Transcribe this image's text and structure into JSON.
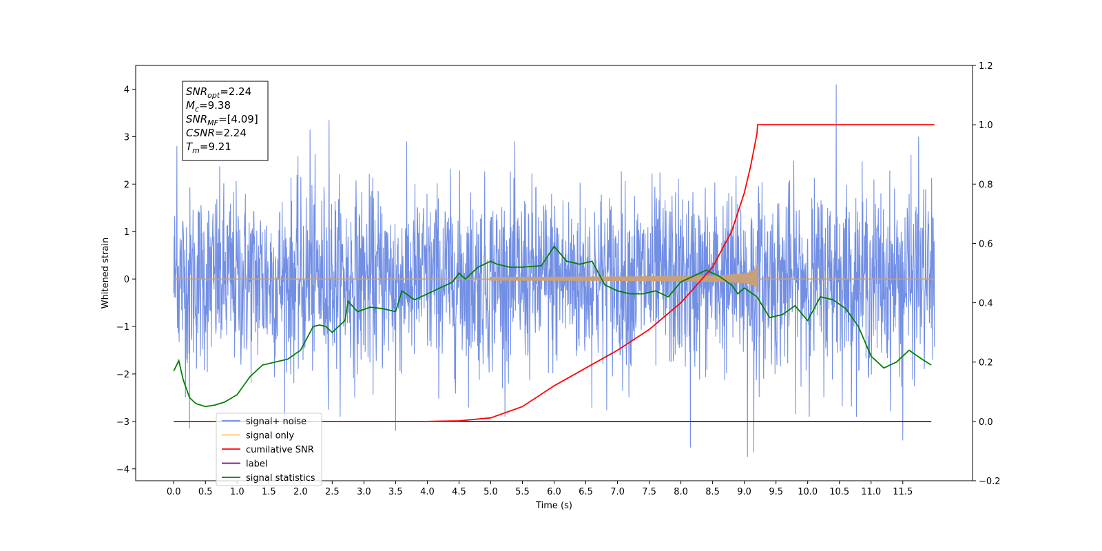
{
  "chart_data": {
    "type": "line",
    "xlabel": "Time (s)",
    "ylabel": "Whitened strain",
    "xlim": [
      -0.6,
      12.6
    ],
    "ylim": [
      -4.25,
      4.5
    ],
    "y2lim": [
      -0.2,
      1.2
    ],
    "x_ticks": [
      0.0,
      0.5,
      1.0,
      1.5,
      2.0,
      2.5,
      3.0,
      3.5,
      4.0,
      4.5,
      5.0,
      5.5,
      6.0,
      6.5,
      7.0,
      7.5,
      8.0,
      8.5,
      9.0,
      9.5,
      10.0,
      10.5,
      11.0,
      11.5
    ],
    "x_tick_labels": [
      "0.0",
      "0.5",
      "1.0",
      "1.5",
      "2.0",
      "2.5",
      "3.0",
      "3.5",
      "4.0",
      "4.5",
      "5.0",
      "5.5",
      "6.0",
      "6.5",
      "7.0",
      "7.5",
      "8.0",
      "8.5",
      "9.0",
      "9.5",
      "10.0",
      "10.5",
      "11.0",
      "11.5"
    ],
    "y_ticks": [
      -4,
      -3,
      -2,
      -1,
      0,
      1,
      2,
      3,
      4
    ],
    "y_tick_labels": [
      "−4",
      "−3",
      "−2",
      "−1",
      "0",
      "1",
      "2",
      "3",
      "4"
    ],
    "y2_ticks": [
      -0.2,
      0.0,
      0.2,
      0.4,
      0.6,
      0.8,
      1.0,
      1.2
    ],
    "y2_tick_labels": [
      "−0.2",
      "0.0",
      "0.2",
      "0.4",
      "0.6",
      "0.8",
      "1.0",
      "1.2"
    ],
    "grid": false,
    "legend_position": "lower-left",
    "annotation_lines": [
      {
        "name": "SNR",
        "sub": "opt",
        "value": "=2.24"
      },
      {
        "name": "M",
        "sub": "c",
        "value": "=9.38"
      },
      {
        "name": "SNR",
        "sub": "MF",
        "value": "=[4.09]"
      },
      {
        "name": "CSNR",
        "sub": "",
        "value": "=2.24"
      },
      {
        "name": "T",
        "sub": "m",
        "value": "=9.21"
      }
    ],
    "series": [
      {
        "name": "signal+ noise",
        "color": "#6a89e3",
        "axis": "left",
        "x_range": [
          0.0,
          12.0
        ],
        "typical_range": [
          -2.0,
          2.0
        ],
        "peak_values": [
          {
            "x": 0.05,
            "y": 2.8
          },
          {
            "x": 0.25,
            "y": -3.15
          },
          {
            "x": 2.15,
            "y": 3.15
          },
          {
            "x": 2.45,
            "y": 3.35
          },
          {
            "x": 3.5,
            "y": -3.2
          },
          {
            "x": 8.15,
            "y": -3.55
          },
          {
            "x": 9.05,
            "y": -3.75
          },
          {
            "x": 9.15,
            "y": -3.65
          },
          {
            "x": 10.45,
            "y": 4.1
          },
          {
            "x": 11.5,
            "y": -3.4
          },
          {
            "x": 11.75,
            "y": 3.0
          }
        ]
      },
      {
        "name": "signal only",
        "color": "#c8a07a",
        "axis": "left",
        "chirp_start": 5.0,
        "merger_time": 9.21,
        "merger_amplitude": 0.32
      },
      {
        "name": "cumilative SNR",
        "color": "#ff0000",
        "axis": "right",
        "x": [
          0.0,
          4.0,
          4.5,
          5.0,
          5.5,
          6.0,
          6.5,
          7.0,
          7.5,
          8.0,
          8.5,
          8.8,
          9.0,
          9.1,
          9.2,
          9.21,
          12.0
        ],
        "values": [
          0.0,
          0.0,
          0.002,
          0.012,
          0.05,
          0.12,
          0.18,
          0.24,
          0.31,
          0.4,
          0.52,
          0.64,
          0.77,
          0.86,
          0.97,
          1.0,
          1.0
        ]
      },
      {
        "name": "label",
        "color": "#6a0f6a",
        "axis": "right",
        "x": [
          0.0,
          11.95
        ],
        "values": [
          0.0,
          0.0
        ]
      },
      {
        "name": "signal statistics",
        "color": "#008000",
        "axis": "right",
        "x": [
          0.0,
          0.08,
          0.15,
          0.25,
          0.35,
          0.5,
          0.65,
          0.8,
          1.0,
          1.2,
          1.4,
          1.6,
          1.8,
          2.0,
          2.2,
          2.3,
          2.4,
          2.5,
          2.6,
          2.7,
          2.75,
          2.9,
          3.1,
          3.3,
          3.5,
          3.6,
          3.8,
          4.0,
          4.2,
          4.4,
          4.5,
          4.6,
          4.8,
          5.0,
          5.1,
          5.3,
          5.5,
          5.8,
          6.0,
          6.2,
          6.4,
          6.6,
          6.8,
          7.0,
          7.2,
          7.4,
          7.6,
          7.8,
          8.0,
          8.2,
          8.4,
          8.6,
          8.8,
          8.9,
          9.0,
          9.2,
          9.4,
          9.6,
          9.8,
          10.0,
          10.2,
          10.4,
          10.6,
          10.8,
          11.0,
          11.2,
          11.4,
          11.6,
          11.8,
          11.95
        ],
        "values": [
          0.17,
          0.205,
          0.14,
          0.08,
          0.06,
          0.05,
          0.055,
          0.065,
          0.09,
          0.15,
          0.19,
          0.2,
          0.21,
          0.24,
          0.32,
          0.325,
          0.32,
          0.3,
          0.32,
          0.34,
          0.405,
          0.37,
          0.385,
          0.38,
          0.37,
          0.44,
          0.41,
          0.43,
          0.45,
          0.47,
          0.5,
          0.48,
          0.52,
          0.54,
          0.53,
          0.52,
          0.52,
          0.525,
          0.59,
          0.54,
          0.53,
          0.54,
          0.46,
          0.44,
          0.43,
          0.43,
          0.44,
          0.42,
          0.47,
          0.49,
          0.51,
          0.49,
          0.46,
          0.43,
          0.45,
          0.42,
          0.35,
          0.36,
          0.39,
          0.34,
          0.42,
          0.41,
          0.38,
          0.32,
          0.22,
          0.18,
          0.2,
          0.24,
          0.21,
          0.19
        ]
      }
    ]
  }
}
